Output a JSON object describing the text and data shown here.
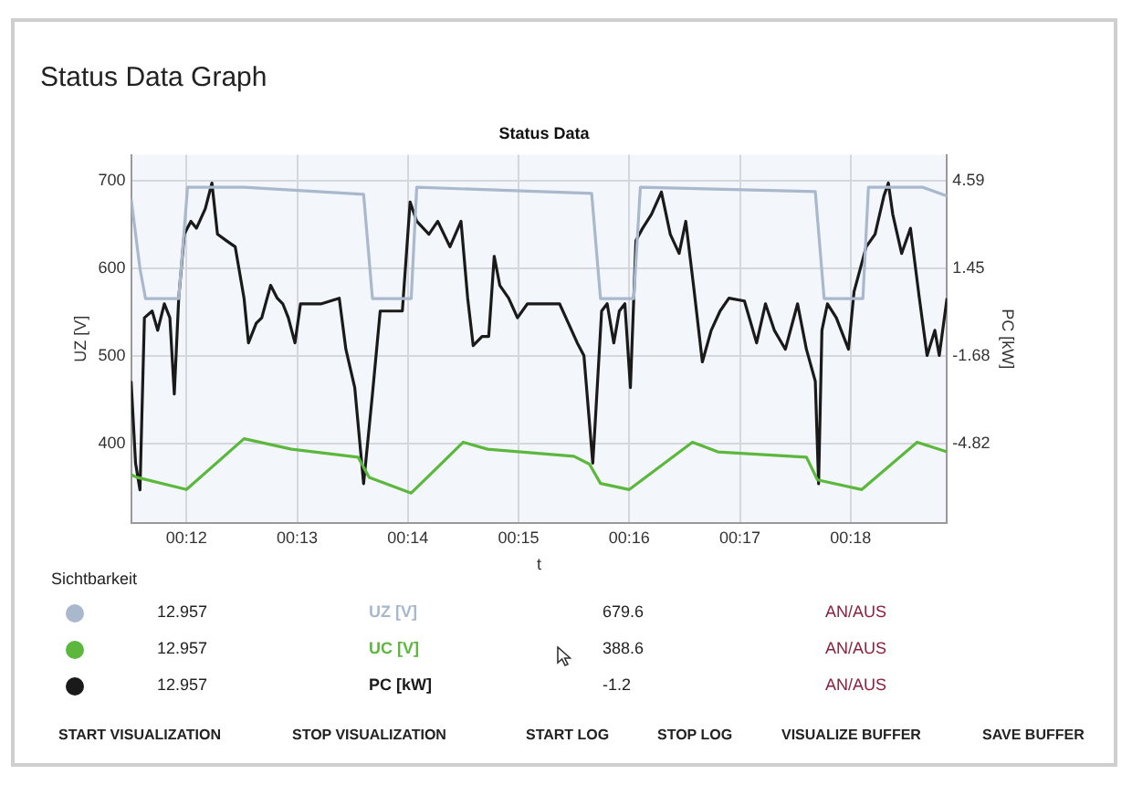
{
  "chart_data": {
    "type": "line",
    "title": "Status Data Graph",
    "subtitle": "Status Data",
    "xlabel": "t",
    "ylabel": "UZ [V]",
    "y2label": "PC [kW]",
    "xlim": [
      11.5,
      18.87
    ],
    "xticks": [
      {
        "value": 12,
        "label": "00:12"
      },
      {
        "value": 13,
        "label": "00:13"
      },
      {
        "value": 14,
        "label": "00:14"
      },
      {
        "value": 15,
        "label": "00:15"
      },
      {
        "value": 16,
        "label": "00:16"
      },
      {
        "value": 17,
        "label": "00:17"
      },
      {
        "value": 18,
        "label": "00:18"
      }
    ],
    "ylim": [
      310,
      730
    ],
    "yticks": [
      400,
      500,
      600,
      700
    ],
    "y2lim": [
      -7.64,
      5.53
    ],
    "y2ticks": [
      -4.82,
      -1.68,
      1.45,
      4.59
    ],
    "grid": true,
    "legend": "bottom",
    "marker": "none",
    "line_style": "solid",
    "series": [
      {
        "name": "UZ [V]",
        "color": "#a9b8cc",
        "x": [
          11.5,
          11.58,
          11.63,
          11.93,
          12.01,
          12.52,
          13.6,
          13.68,
          14.03,
          14.08,
          15.66,
          15.74,
          16.04,
          16.1,
          17.68,
          17.76,
          18.11,
          18.16,
          18.65,
          18.87
        ],
        "values": [
          680,
          600,
          566,
          566,
          693,
          693,
          685,
          566,
          566,
          693,
          686,
          566,
          566,
          693,
          688,
          566,
          566,
          693,
          693,
          683
        ]
      },
      {
        "name": "UC [V]",
        "color": "#5cb83c",
        "x": [
          11.5,
          11.55,
          12.0,
          12.52,
          12.95,
          13.55,
          13.65,
          14.03,
          14.5,
          14.72,
          15.5,
          15.64,
          15.74,
          16.0,
          16.57,
          16.8,
          17.6,
          17.7,
          18.1,
          18.6,
          18.87
        ],
        "values": [
          365,
          362,
          348,
          406,
          394,
          385,
          362,
          344,
          402,
          394,
          386,
          377,
          355,
          348,
          402,
          391,
          385,
          359,
          348,
          402,
          391
        ]
      },
      {
        "name": "PC [kW]",
        "color": "#1a1a1a",
        "axis": "y2",
        "x": [
          11.5,
          11.54,
          11.58,
          11.62,
          11.69,
          11.74,
          11.8,
          11.85,
          11.89,
          11.93,
          11.98,
          12.04,
          12.09,
          12.17,
          12.23,
          12.28,
          12.36,
          12.44,
          12.52,
          12.56,
          12.63,
          12.68,
          12.76,
          12.82,
          12.87,
          12.92,
          12.98,
          13.03,
          13.22,
          13.38,
          13.44,
          13.52,
          13.6,
          13.68,
          13.75,
          13.95,
          14.02,
          14.08,
          14.19,
          14.27,
          14.38,
          14.48,
          14.54,
          14.59,
          14.67,
          14.73,
          14.78,
          14.83,
          14.91,
          14.99,
          15.08,
          15.37,
          15.45,
          15.53,
          15.59,
          15.67,
          15.69,
          15.75,
          15.8,
          15.86,
          15.91,
          15.96,
          16.01,
          16.06,
          16.12,
          16.2,
          16.29,
          16.37,
          16.45,
          16.51,
          16.58,
          16.66,
          16.74,
          16.82,
          16.9,
          17.04,
          17.15,
          17.23,
          17.31,
          17.41,
          17.52,
          17.6,
          17.68,
          17.71,
          17.74,
          17.79,
          17.87,
          17.98,
          18.03,
          18.14,
          18.22,
          18.3,
          18.34,
          18.38,
          18.46,
          18.54,
          18.62,
          18.69,
          18.76,
          18.8,
          18.87
        ],
        "values": [
          -2.57,
          -5.5,
          -6.46,
          -0.3,
          -0.06,
          -0.75,
          0.2,
          -0.3,
          -3.03,
          0.4,
          2.69,
          3.15,
          2.9,
          3.6,
          4.52,
          2.69,
          2.46,
          2.24,
          0.4,
          -1.2,
          -0.5,
          -0.3,
          0.86,
          0.4,
          0.2,
          -0.3,
          -1.2,
          0.2,
          0.2,
          0.4,
          -1.43,
          -2.8,
          -6.24,
          -3.03,
          -0.06,
          -0.06,
          3.84,
          3.15,
          2.69,
          3.15,
          2.24,
          3.15,
          0.4,
          -1.3,
          -0.97,
          -0.97,
          1.9,
          0.86,
          0.4,
          -0.3,
          0.2,
          0.2,
          -0.5,
          -1.2,
          -1.65,
          -5.5,
          -4.2,
          -0.06,
          0.2,
          -1.2,
          -0.06,
          0.2,
          -2.8,
          2.46,
          2.9,
          3.4,
          4.2,
          2.69,
          2.0,
          3.15,
          0.86,
          -1.88,
          -0.75,
          -0.06,
          0.4,
          0.3,
          -1.2,
          0.2,
          -0.75,
          -1.43,
          0.2,
          -1.43,
          -2.57,
          -6.24,
          -0.75,
          0.2,
          -0.3,
          -1.43,
          0.63,
          2.24,
          2.69,
          4.06,
          4.52,
          3.4,
          2.0,
          2.9,
          0.4,
          -1.65,
          -0.75,
          -1.65,
          0.4
        ]
      }
    ],
    "annotations": [
      "Sichtbarkeit",
      "12.957",
      "679.6",
      "AN/AUS",
      "12.957",
      "388.6",
      "AN/AUS",
      "12.957",
      "-1.2",
      "AN/AUS",
      "START VISUALIZATION",
      "STOP VISUALIZATION",
      "START LOG",
      "STOP LOG",
      "VISUALIZE BUFFER",
      "SAVE BUFFER"
    ]
  }
}
